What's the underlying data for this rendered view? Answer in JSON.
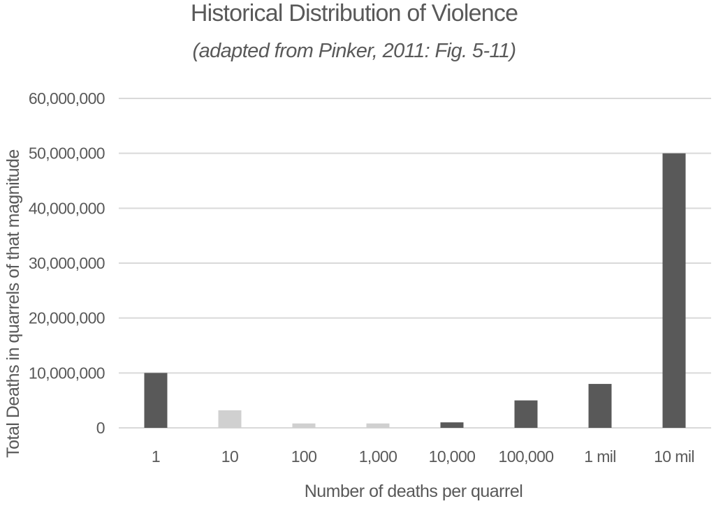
{
  "chart_data": {
    "type": "bar",
    "title": "Historical Distribution of Violence",
    "subtitle": "(adapted from Pinker, 2011: Fig. 5-11)",
    "xlabel": "Number of deaths per quarrel",
    "ylabel": "Total Deaths in quarrels of that magnitude",
    "categories": [
      "1",
      "10",
      "100",
      "1,000",
      "10,000",
      "100,000",
      "1 mil",
      "10 mil"
    ],
    "values": [
      10000000,
      3200000,
      800000,
      800000,
      1000000,
      5000000,
      8000000,
      50000000
    ],
    "bar_colors": [
      "#595959",
      "#d0d0d0",
      "#d0d0d0",
      "#d0d0d0",
      "#595959",
      "#595959",
      "#595959",
      "#595959"
    ],
    "ylim": [
      0,
      60000000
    ],
    "yticks": [
      0,
      10000000,
      20000000,
      30000000,
      40000000,
      50000000,
      60000000
    ],
    "ytick_labels": [
      "0",
      "10,000,000",
      "20,000,000",
      "30,000,000",
      "40,000,000",
      "50,000,000",
      "60,000,000"
    ],
    "grid": true,
    "legend": "none",
    "gridline_color": "#d9d9d9",
    "text_color": "#595959"
  }
}
